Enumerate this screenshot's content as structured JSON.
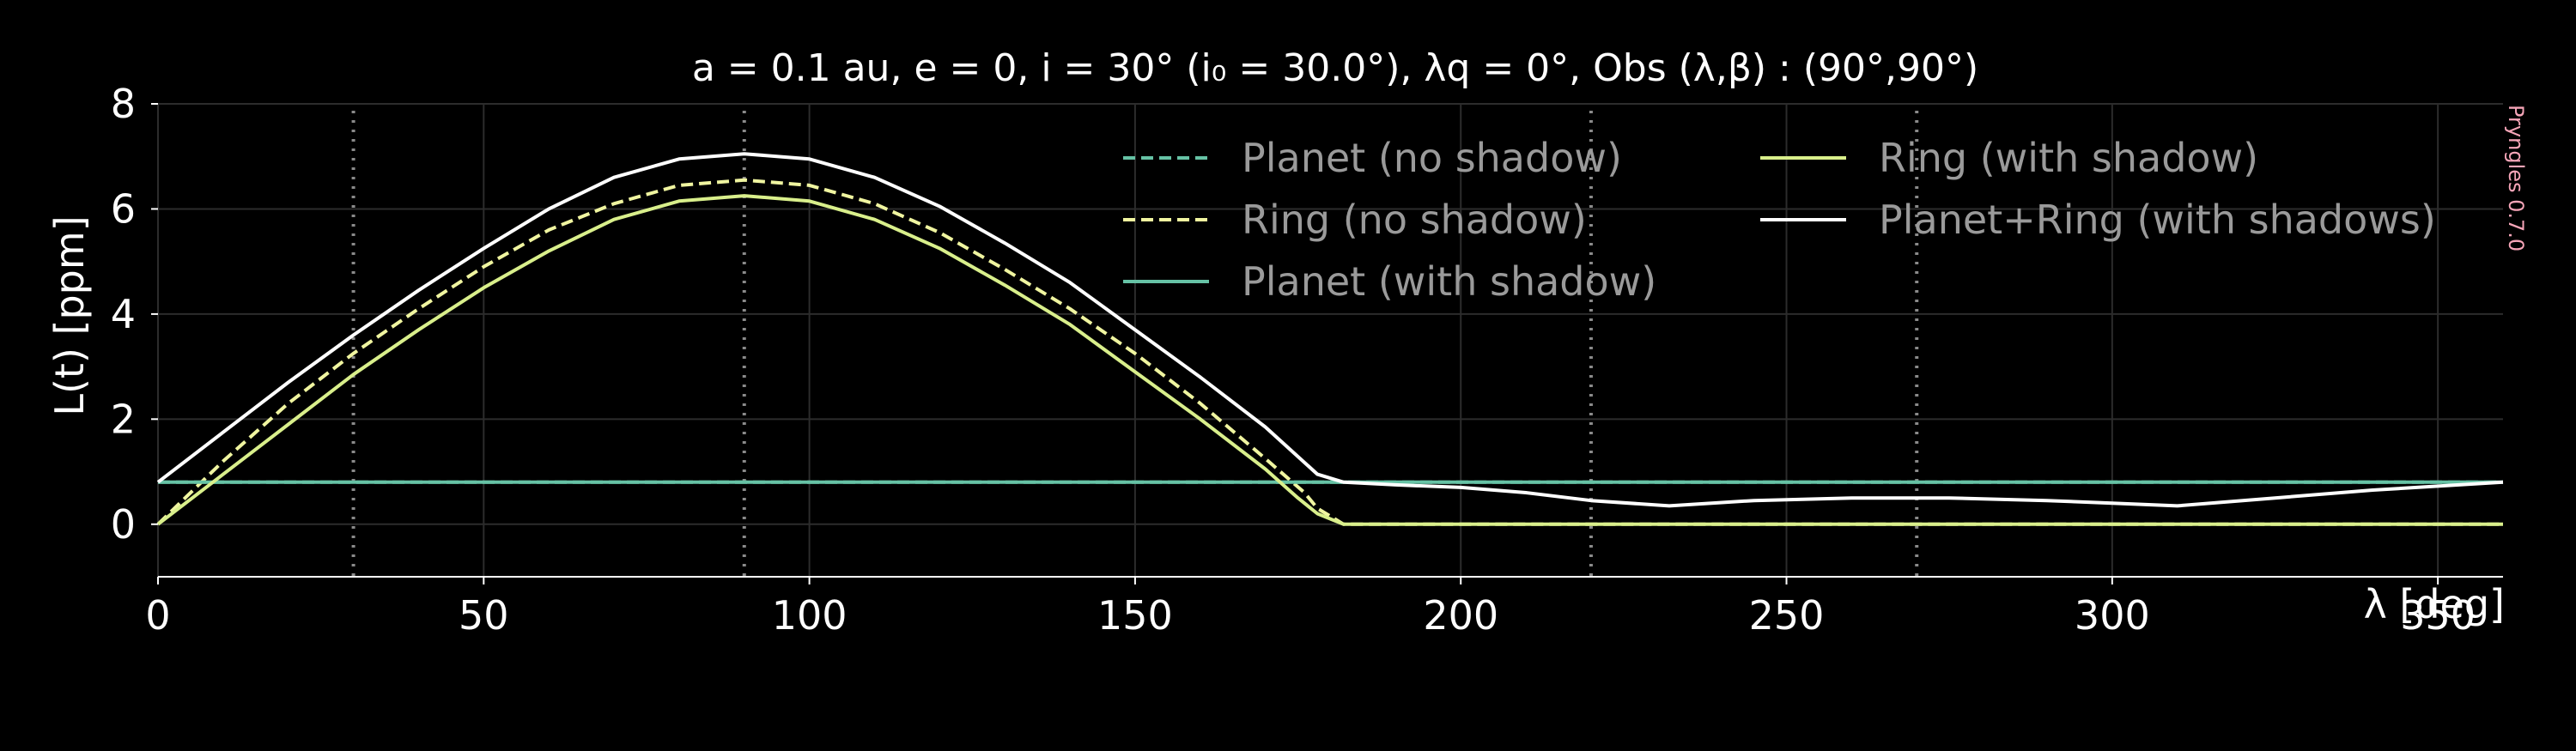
{
  "chart_data": {
    "type": "line",
    "title": {
      "a": "a = 0.1 au",
      "e": "e = 0",
      "i": "i = 30° (i₀ = 30.0°)",
      "lambda_q": "λq = 0°",
      "obs": "Obs (λ,β) : (90°,90°)"
    },
    "xlabel": "λ [deg]",
    "ylabel": "L(t) [ppm]",
    "xlim": [
      0,
      360
    ],
    "ylim": [
      -1,
      8
    ],
    "xticks": [
      0,
      50,
      100,
      150,
      200,
      250,
      300,
      350
    ],
    "yticks": [
      0,
      2,
      4,
      6,
      8
    ],
    "grid": true,
    "legend_position": "top-right",
    "watermark": "Pryngles 0.7.0",
    "vlines": [
      30,
      90,
      220,
      270
    ],
    "series": [
      {
        "name": "Planet (no shadow)",
        "color": "#66c2a5",
        "dash": true,
        "x": [
          0,
          360
        ],
        "y": [
          0.8,
          0.8
        ]
      },
      {
        "name": "Ring (no shadow)",
        "color": "#f0f5a0",
        "dash": true,
        "x": [
          0,
          10,
          20,
          30,
          40,
          50,
          60,
          70,
          80,
          90,
          100,
          110,
          120,
          130,
          140,
          150,
          160,
          170,
          176,
          178,
          182,
          190,
          200,
          250,
          300,
          360
        ],
        "y": [
          0,
          1.2,
          2.3,
          3.25,
          4.1,
          4.9,
          5.6,
          6.1,
          6.45,
          6.55,
          6.45,
          6.1,
          5.55,
          4.85,
          4.1,
          3.25,
          2.3,
          1.25,
          0.6,
          0.3,
          0,
          0,
          0,
          0,
          0,
          0
        ]
      },
      {
        "name": "Planet (with shadow)",
        "color": "#66c2a5",
        "dash": false,
        "x": [
          0,
          360
        ],
        "y": [
          0.8,
          0.8
        ]
      },
      {
        "name": "Ring (with shadow)",
        "color": "#d9ef8b",
        "dash": false,
        "x": [
          0,
          10,
          20,
          30,
          40,
          50,
          60,
          70,
          80,
          90,
          100,
          110,
          120,
          130,
          140,
          150,
          160,
          170,
          175,
          178,
          182,
          190,
          200,
          250,
          300,
          360
        ],
        "y": [
          0,
          0.95,
          1.9,
          2.85,
          3.7,
          4.5,
          5.2,
          5.8,
          6.15,
          6.25,
          6.15,
          5.8,
          5.25,
          4.55,
          3.8,
          2.9,
          2.0,
          1.05,
          0.5,
          0.2,
          0,
          0,
          0,
          0,
          0,
          0
        ]
      },
      {
        "name": "Planet+Ring (with shadows)",
        "color": "#ffffff",
        "dash": false,
        "x": [
          0,
          10,
          20,
          30,
          40,
          50,
          60,
          70,
          80,
          90,
          100,
          110,
          120,
          130,
          140,
          150,
          160,
          170,
          178,
          182,
          190,
          200,
          210,
          220,
          232,
          245,
          260,
          275,
          290,
          300,
          310,
          325,
          340,
          360
        ],
        "y": [
          0.8,
          1.75,
          2.7,
          3.6,
          4.45,
          5.25,
          6.0,
          6.6,
          6.95,
          7.05,
          6.95,
          6.6,
          6.05,
          5.35,
          4.6,
          3.7,
          2.8,
          1.85,
          0.95,
          0.8,
          0.75,
          0.7,
          0.6,
          0.45,
          0.35,
          0.45,
          0.5,
          0.5,
          0.45,
          0.4,
          0.35,
          0.5,
          0.65,
          0.8
        ]
      }
    ]
  }
}
